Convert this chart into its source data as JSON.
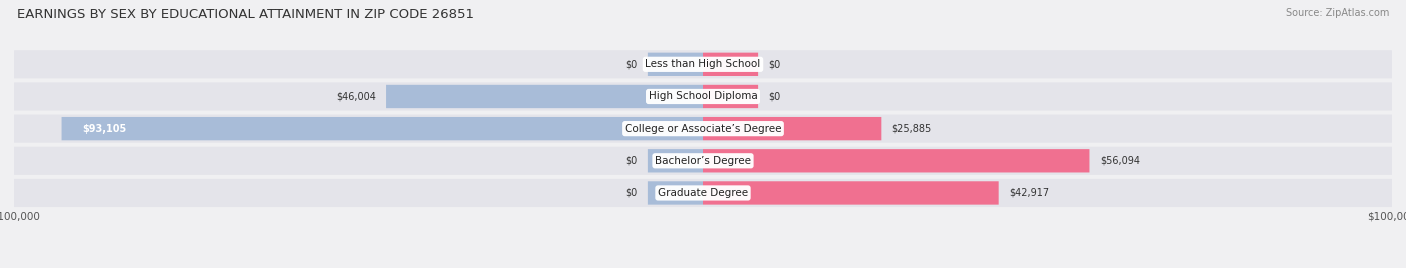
{
  "title": "EARNINGS BY SEX BY EDUCATIONAL ATTAINMENT IN ZIP CODE 26851",
  "source": "Source: ZipAtlas.com",
  "categories": [
    "Less than High School",
    "High School Diploma",
    "College or Associate’s Degree",
    "Bachelor’s Degree",
    "Graduate Degree"
  ],
  "male_values": [
    0,
    46004,
    93105,
    0,
    0
  ],
  "female_values": [
    0,
    0,
    25885,
    56094,
    42917
  ],
  "male_color": "#a8bcd8",
  "female_color": "#f07090",
  "axis_max": 100000,
  "background_color": "#f0f0f2",
  "bar_background": "#e4e4ea",
  "title_fontsize": 9.5,
  "bar_height": 0.72,
  "zero_stub": 8000
}
